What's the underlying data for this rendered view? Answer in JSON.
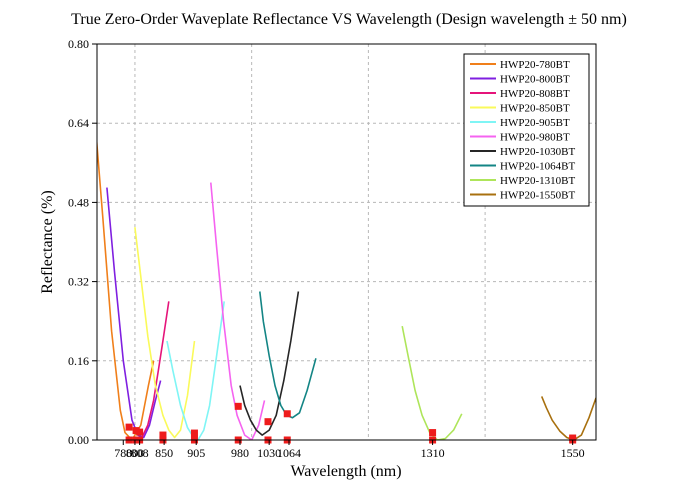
{
  "chart_data": {
    "type": "line",
    "title": "True Zero-Order Waveplate Reflectance VS Wavelength (Design wavelength ± 50 nm)",
    "xlabel": "Wavelength (nm)",
    "ylabel": "Reflectance (%)",
    "xlim": [
      735,
      1590
    ],
    "ylim": [
      0,
      0.8
    ],
    "yticks": [
      0.0,
      0.16,
      0.32,
      0.48,
      0.64,
      0.8
    ],
    "ytick_labels": [
      "0.00",
      "0.16",
      "0.32",
      "0.48",
      "0.64",
      "0.80"
    ],
    "xticks": [
      780,
      800,
      808,
      850,
      905,
      980,
      1030,
      1064,
      1310,
      1550
    ],
    "xtick_labels": [
      "780",
      "800",
      "808",
      "850",
      "905",
      "980",
      "1030",
      "1064",
      "1310",
      "1550"
    ],
    "grid": true,
    "legend_position": "top-right",
    "series": [
      {
        "name": "HWP20-780BT",
        "color": "#f07f1a",
        "x": [
          732,
          745,
          760,
          775,
          783,
          795,
          810,
          823,
          832
        ],
        "y": [
          0.64,
          0.45,
          0.22,
          0.06,
          0.015,
          0.0,
          0.03,
          0.11,
          0.16
        ]
      },
      {
        "name": "HWP20-800BT",
        "color": "#7f1fe0",
        "x": [
          752,
          765,
          780,
          795,
          805,
          815,
          825,
          835,
          844
        ],
        "y": [
          0.51,
          0.34,
          0.16,
          0.04,
          0.01,
          0.005,
          0.03,
          0.08,
          0.12
        ]
      },
      {
        "name": "HWP20-808BT",
        "color": "#e5147a",
        "x": [
          806,
          812,
          822,
          832,
          840,
          848,
          858
        ],
        "y": [
          0.0,
          0.005,
          0.03,
          0.08,
          0.14,
          0.2,
          0.28
        ]
      },
      {
        "name": "HWP20-850BT",
        "color": "#fafa5a",
        "x": [
          800,
          810,
          822,
          835,
          848,
          858,
          868,
          878,
          890,
          902
        ],
        "y": [
          0.43,
          0.33,
          0.21,
          0.11,
          0.05,
          0.02,
          0.005,
          0.02,
          0.09,
          0.2
        ]
      },
      {
        "name": "HWP20-905BT",
        "color": "#7ff5f5",
        "x": [
          855,
          865,
          878,
          890,
          898,
          908,
          918,
          928,
          940,
          953
        ],
        "y": [
          0.2,
          0.14,
          0.07,
          0.025,
          0.01,
          0.0,
          0.02,
          0.07,
          0.17,
          0.28
        ]
      },
      {
        "name": "HWP20-980BT",
        "color": "#f563f0",
        "x": [
          930,
          940,
          952,
          965,
          975,
          988,
          1000,
          1012,
          1022
        ],
        "y": [
          0.52,
          0.39,
          0.24,
          0.11,
          0.05,
          0.01,
          0.0,
          0.03,
          0.08
        ]
      },
      {
        "name": "HWP20-1030BT",
        "color": "#262626",
        "x": [
          980,
          988,
          998,
          1008,
          1018,
          1030,
          1042,
          1055,
          1067,
          1080
        ],
        "y": [
          0.11,
          0.07,
          0.04,
          0.02,
          0.01,
          0.02,
          0.05,
          0.12,
          0.2,
          0.3
        ]
      },
      {
        "name": "HWP20-1064BT",
        "color": "#138585",
        "x": [
          1014,
          1020,
          1030,
          1040,
          1050,
          1060,
          1070,
          1082,
          1095,
          1110
        ],
        "y": [
          0.3,
          0.24,
          0.17,
          0.11,
          0.07,
          0.05,
          0.045,
          0.055,
          0.1,
          0.165
        ]
      },
      {
        "name": "HWP20-1310BT",
        "color": "#aee55a",
        "x": [
          1258,
          1268,
          1280,
          1292,
          1305,
          1318,
          1332,
          1346,
          1360
        ],
        "y": [
          0.23,
          0.17,
          0.1,
          0.05,
          0.015,
          0.0,
          0.003,
          0.02,
          0.053
        ]
      },
      {
        "name": "HWP20-1550BT",
        "color": "#a8700f",
        "x": [
          1497,
          1505,
          1515,
          1528,
          1540,
          1552,
          1565,
          1578,
          1590
        ],
        "y": [
          0.088,
          0.065,
          0.04,
          0.018,
          0.005,
          0.0,
          0.01,
          0.045,
          0.085
        ]
      }
    ],
    "markers": {
      "color": "#ee1c1c",
      "upper": [
        {
          "x": 790,
          "y": 0.026
        },
        {
          "x": 802,
          "y": 0.019
        },
        {
          "x": 808,
          "y": 0.016
        },
        {
          "x": 848,
          "y": 0.01
        },
        {
          "x": 902,
          "y": 0.014
        },
        {
          "x": 977,
          "y": 0.068
        },
        {
          "x": 1028,
          "y": 0.037
        },
        {
          "x": 1061,
          "y": 0.053
        },
        {
          "x": 1310,
          "y": 0.015
        },
        {
          "x": 1550,
          "y": 0.004
        }
      ],
      "baseline": [
        {
          "x": 790,
          "y": 0.0
        },
        {
          "x": 802,
          "y": 0.0
        },
        {
          "x": 808,
          "y": 0.0
        },
        {
          "x": 848,
          "y": 0.0
        },
        {
          "x": 902,
          "y": 0.0
        },
        {
          "x": 977,
          "y": 0.0
        },
        {
          "x": 1028,
          "y": 0.0
        },
        {
          "x": 1061,
          "y": 0.0
        },
        {
          "x": 1310,
          "y": 0.0
        },
        {
          "x": 1550,
          "y": 0.0
        }
      ]
    }
  }
}
